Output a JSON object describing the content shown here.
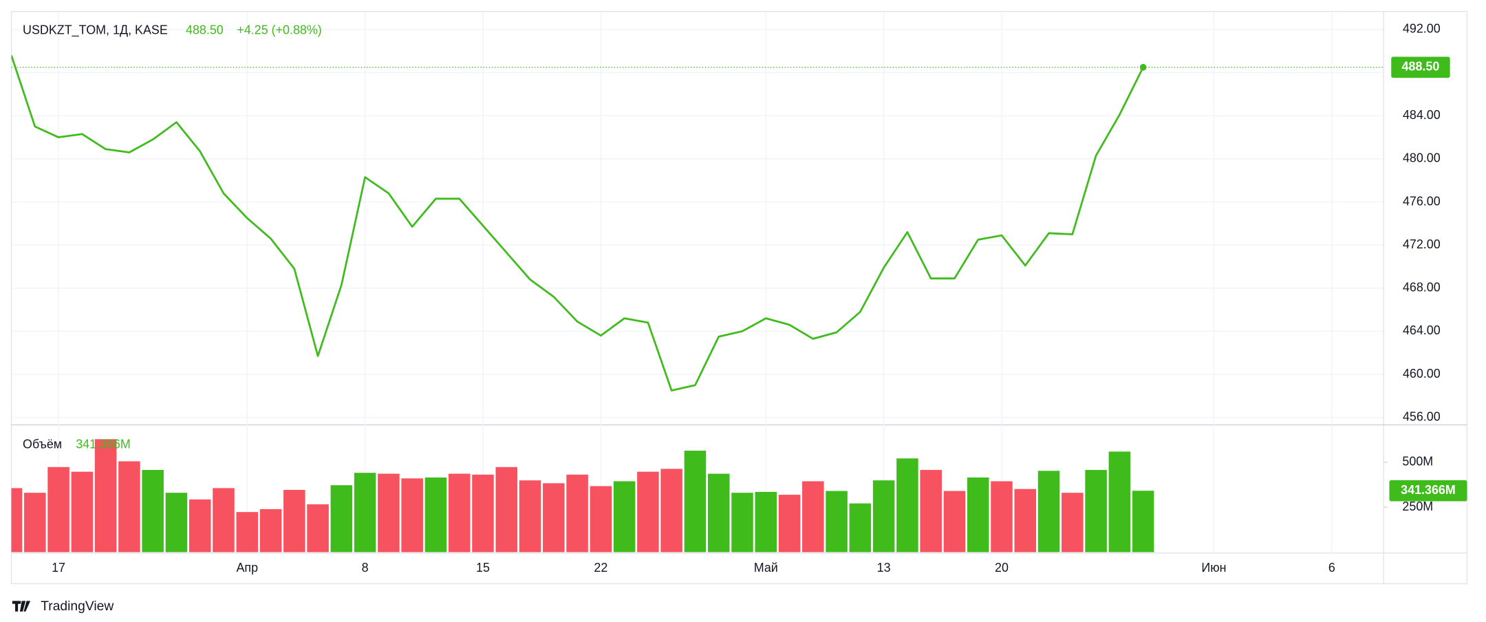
{
  "chart_data": [
    {
      "type": "line",
      "title": "USDKZT_TOM, 1Д, KASE",
      "last_label": "488.50",
      "change": "+4.25 (+0.88%)",
      "color": "#3fbb1c",
      "x": [
        0,
        1,
        2,
        3,
        4,
        5,
        6,
        7,
        8,
        9,
        10,
        11,
        12,
        13,
        14,
        15,
        16,
        17,
        18,
        19,
        20,
        21,
        22,
        23,
        24,
        25,
        26,
        27,
        28,
        29,
        30,
        31,
        32,
        33,
        34,
        35,
        36,
        37,
        38,
        39,
        40,
        41,
        42,
        43,
        44,
        45,
        46,
        47,
        48
      ],
      "series": [
        {
          "name": "USDKZT_TOM",
          "color": "#3fbb1c",
          "values": [
            489.6,
            483.0,
            482.0,
            482.3,
            480.9,
            480.6,
            481.8,
            483.4,
            480.7,
            476.8,
            474.5,
            472.6,
            469.8,
            461.7,
            468.3,
            478.3,
            476.8,
            473.7,
            476.3,
            476.3,
            473.8,
            471.3,
            468.8,
            467.2,
            464.9,
            463.6,
            465.2,
            464.8,
            458.5,
            459.0,
            463.5,
            464.0,
            465.2,
            464.6,
            463.3,
            463.9,
            465.8,
            469.9,
            473.2,
            468.9,
            468.9,
            472.5,
            472.9,
            470.1,
            473.1,
            473.0,
            480.3,
            484.1,
            488.5
          ]
        }
      ],
      "xlim": [
        0,
        58.2
      ],
      "xticks": [
        {
          "value": 2,
          "label": "17"
        },
        {
          "value": 10,
          "label": "Апр"
        },
        {
          "value": 15,
          "label": "8"
        },
        {
          "value": 20,
          "label": "15"
        },
        {
          "value": 25,
          "label": "22"
        },
        {
          "value": 32,
          "label": "Май"
        },
        {
          "value": 37,
          "label": "13"
        },
        {
          "value": 42,
          "label": "20"
        },
        {
          "value": 51,
          "label": "Июн"
        },
        {
          "value": 56,
          "label": "6"
        }
      ],
      "ylim": [
        455.4,
        493.5
      ],
      "yticks": [
        {
          "value": 456,
          "label": "456.00"
        },
        {
          "value": 460,
          "label": "460.00"
        },
        {
          "value": 464,
          "label": "464.00"
        },
        {
          "value": 468,
          "label": "468.00"
        },
        {
          "value": 472,
          "label": "472.00"
        },
        {
          "value": 476,
          "label": "476.00"
        },
        {
          "value": 480,
          "label": "480.00"
        },
        {
          "value": 484,
          "label": "484.00"
        },
        {
          "value": 488,
          "label": "488.00"
        },
        {
          "value": 492,
          "label": "492.00"
        }
      ],
      "grid": true
    },
    {
      "type": "bar",
      "title": "Объём",
      "last_label": "341.366M",
      "values": [
        356,
        330,
        473,
        447,
        628,
        505,
        457,
        330,
        293,
        356,
        223,
        239,
        346,
        266,
        372,
        441,
        436,
        410,
        415,
        436,
        431,
        473,
        399,
        383,
        431,
        367,
        394,
        447,
        463,
        564,
        436,
        330,
        335,
        319,
        394,
        340,
        271,
        399,
        521,
        457,
        340,
        415,
        394,
        351,
        452,
        330,
        457,
        559,
        341.366
      ],
      "bar_colors": [
        "#f7525f",
        "#f7525f",
        "#f7525f",
        "#f7525f",
        "#f7525f",
        "#f7525f",
        "#3fbb1c",
        "#3fbb1c",
        "#f7525f",
        "#f7525f",
        "#f7525f",
        "#f7525f",
        "#f7525f",
        "#f7525f",
        "#3fbb1c",
        "#3fbb1c",
        "#f7525f",
        "#f7525f",
        "#3fbb1c",
        "#f7525f",
        "#f7525f",
        "#f7525f",
        "#f7525f",
        "#f7525f",
        "#f7525f",
        "#f7525f",
        "#3fbb1c",
        "#f7525f",
        "#f7525f",
        "#3fbb1c",
        "#3fbb1c",
        "#3fbb1c",
        "#3fbb1c",
        "#f7525f",
        "#f7525f",
        "#3fbb1c",
        "#3fbb1c",
        "#3fbb1c",
        "#3fbb1c",
        "#f7525f",
        "#f7525f",
        "#3fbb1c",
        "#f7525f",
        "#f7525f",
        "#3fbb1c",
        "#f7525f",
        "#3fbb1c",
        "#3fbb1c",
        "#3fbb1c"
      ],
      "ylim": [
        0,
        707.5
      ],
      "yticks": [
        {
          "value": 250,
          "label": "250M"
        },
        {
          "value": 500,
          "label": "500M"
        }
      ]
    }
  ],
  "footer": {
    "brand": "TradingView"
  }
}
